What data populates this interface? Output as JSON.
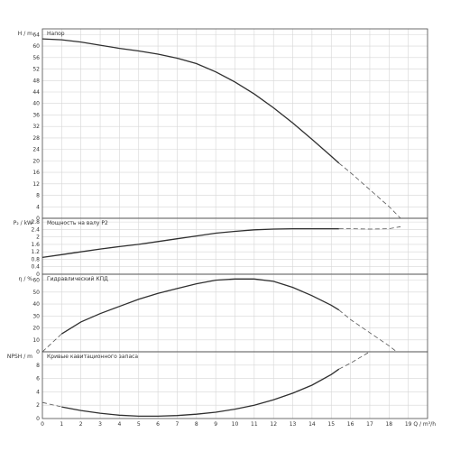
{
  "chart_data": [
    {
      "type": "line",
      "ylabel": "H / m",
      "title": "Напор",
      "ylim": [
        0,
        66
      ],
      "yticks": [
        0,
        4,
        8,
        12,
        16,
        20,
        24,
        28,
        32,
        36,
        40,
        44,
        48,
        52,
        56,
        60,
        64
      ],
      "series": [
        {
          "style": "solid",
          "x": [
            0,
            1,
            2,
            3,
            4,
            5,
            6,
            7,
            8,
            9,
            10,
            11,
            12,
            13,
            14,
            15,
            15.4
          ],
          "y": [
            62.5,
            62.2,
            61.4,
            60.3,
            59.2,
            58.3,
            57.2,
            55.8,
            53.9,
            51.0,
            47.5,
            43.3,
            38.5,
            33.2,
            27.5,
            21.6,
            19.2
          ]
        },
        {
          "style": "dashed",
          "x": [
            15.4,
            16,
            17,
            18,
            18.6
          ],
          "y": [
            19.2,
            15.9,
            10.0,
            4.1,
            0
          ]
        }
      ]
    },
    {
      "type": "line",
      "ylabel": "P₂ / kW",
      "title": "Мощность на валу P2",
      "ylim": [
        0,
        3
      ],
      "yticks": [
        0,
        0.4,
        0.8,
        1.2,
        1.6,
        2,
        2.4,
        2.8
      ],
      "series": [
        {
          "style": "solid",
          "x": [
            0,
            1,
            2,
            3,
            4,
            5,
            6,
            7,
            8,
            9,
            10,
            11,
            12,
            13,
            14,
            15,
            15.4
          ],
          "y": [
            0.9,
            1.05,
            1.2,
            1.35,
            1.48,
            1.6,
            1.75,
            1.9,
            2.05,
            2.2,
            2.3,
            2.38,
            2.42,
            2.44,
            2.44,
            2.44,
            2.44
          ]
        },
        {
          "style": "dashed",
          "x": [
            15.4,
            16,
            17,
            18,
            18.6
          ],
          "y": [
            2.44,
            2.44,
            2.42,
            2.44,
            2.55
          ]
        }
      ]
    },
    {
      "type": "line",
      "ylabel": "η / %",
      "title": "Гидравлический КПД",
      "ylim": [
        0,
        65
      ],
      "yticks": [
        0,
        10,
        20,
        30,
        40,
        50,
        60
      ],
      "series": [
        {
          "style": "solid",
          "x": [
            1,
            2,
            3,
            4,
            5,
            6,
            7,
            8,
            9,
            10,
            11,
            12,
            13,
            14,
            15,
            15.4
          ],
          "y": [
            15,
            25,
            32,
            38,
            44,
            49,
            53,
            57,
            60,
            61,
            61,
            59,
            54,
            47,
            39,
            35
          ]
        },
        {
          "style": "dashed",
          "x": [
            0,
            1
          ],
          "y": [
            0,
            15
          ]
        },
        {
          "style": "dashed",
          "x": [
            15.4,
            16,
            17,
            18,
            18.4
          ],
          "y": [
            35,
            27,
            16,
            5,
            0
          ]
        }
      ]
    },
    {
      "type": "line",
      "ylabel": "NPSH / m",
      "title": "Кривые кавитационного запаса",
      "xlabel": "Q / m³/h",
      "ylim": [
        0,
        10
      ],
      "xlim": [
        0,
        20
      ],
      "yticks": [
        0,
        2,
        4,
        6,
        8
      ],
      "xticks": [
        0,
        1,
        2,
        3,
        4,
        5,
        6,
        7,
        8,
        9,
        10,
        11,
        12,
        13,
        14,
        15,
        16,
        17,
        18,
        19
      ],
      "series": [
        {
          "style": "solid",
          "x": [
            1,
            2,
            3,
            4,
            5,
            6,
            7,
            8,
            9,
            10,
            11,
            12,
            13,
            14,
            15,
            15.4
          ],
          "y": [
            1.75,
            1.2,
            0.8,
            0.5,
            0.35,
            0.35,
            0.45,
            0.65,
            0.95,
            1.4,
            2.0,
            2.8,
            3.8,
            5.0,
            6.6,
            7.4
          ]
        },
        {
          "style": "dashed",
          "x": [
            0,
            1
          ],
          "y": [
            2.4,
            1.75
          ]
        },
        {
          "style": "dashed",
          "x": [
            15.4,
            16,
            17
          ],
          "y": [
            7.4,
            8.3,
            10.0
          ]
        }
      ]
    }
  ]
}
